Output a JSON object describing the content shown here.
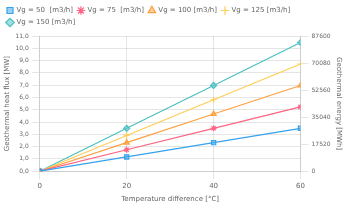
{
  "chart_data": {
    "type": "line",
    "x": [
      0,
      20,
      40,
      60
    ],
    "series": [
      {
        "name": "Vg = 50  [m3/h]",
        "marker": "square",
        "values": [
          0,
          1.163,
          2.326,
          3.489
        ]
      },
      {
        "name": "Vg = 75  [m3/h]",
        "marker": "star",
        "values": [
          0,
          1.744,
          3.489,
          5.233
        ]
      },
      {
        "name": "Vg = 100 [m3/h]",
        "marker": "triangle",
        "values": [
          0,
          2.326,
          4.652,
          6.977
        ]
      },
      {
        "name": "Vg = 125 [m3/h]",
        "marker": "plus",
        "values": [
          0,
          2.907,
          5.815,
          8.722
        ]
      },
      {
        "name": "Vg = 150 [m3/h]",
        "marker": "diamond",
        "values": [
          0,
          3.489,
          6.978,
          10.466
        ]
      }
    ],
    "xlabel": "Temperature difference [°C]",
    "ylabel": "Geothermal heat flux [MW]",
    "y2label": "Geothermal energy [MWh]",
    "xlim": [
      0,
      60
    ],
    "xticks": [
      0,
      20,
      40,
      60
    ],
    "ylim": [
      0,
      11.0
    ],
    "yticks": [
      {
        "value": 0.0,
        "label": "0,0"
      },
      {
        "value": 1.0,
        "label": "1,0"
      },
      {
        "value": 2.0,
        "label": "2,0"
      },
      {
        "value": 3.0,
        "label": "3,0"
      },
      {
        "value": 4.0,
        "label": "4,0"
      },
      {
        "value": 5.0,
        "label": "5,0"
      },
      {
        "value": 6.0,
        "label": "6,0"
      },
      {
        "value": 7.0,
        "label": "7,0"
      },
      {
        "value": 8.0,
        "label": "8,0"
      },
      {
        "value": 9.0,
        "label": "9,0"
      },
      {
        "value": 10.0,
        "label": "10,0"
      },
      {
        "value": 11.0,
        "label": "11,0"
      }
    ],
    "y2lim": [
      0,
      87600
    ],
    "y2ticks": [
      0,
      17520,
      35040,
      52560,
      70080,
      87600
    ],
    "grid": true,
    "legend": "upper left"
  }
}
